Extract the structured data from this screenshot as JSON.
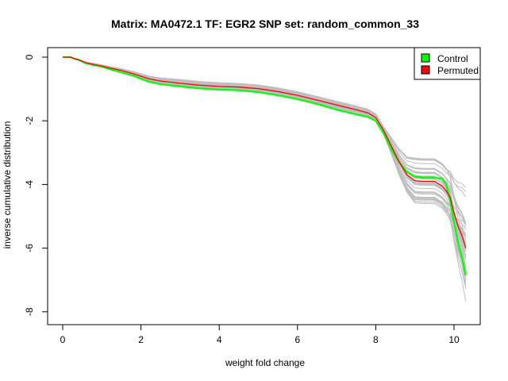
{
  "chart_data": {
    "type": "line",
    "title": "Matrix: MA0472.1 TF: EGR2 SNP set: random_common_33",
    "xlabel": "weight fold change",
    "ylabel": "inverse cumulative distribution",
    "xlim": [
      0,
      10.3
    ],
    "ylim": [
      -8,
      0
    ],
    "x_ticks": [
      0,
      2,
      4,
      6,
      8,
      10
    ],
    "y_ticks": [
      0,
      -2,
      -4,
      -6,
      -8
    ],
    "grid": false,
    "legend_position": "top-right",
    "colors": {
      "control": "#00ff00",
      "permuted": "#ff0000",
      "background": "#bebebe"
    },
    "background_series_count": 40,
    "series": [
      {
        "name": "Control",
        "color": "#00ff00",
        "x": [
          0,
          0.2,
          0.3,
          0.4,
          0.5,
          0.6,
          0.8,
          1.0,
          1.2,
          1.5,
          1.8,
          2.0,
          2.2,
          2.5,
          3.0,
          3.5,
          4.0,
          4.5,
          5.0,
          5.5,
          6.0,
          6.5,
          7.0,
          7.5,
          7.8,
          8.0,
          8.2,
          8.4,
          8.6,
          8.8,
          9.0,
          9.2,
          9.5,
          9.7,
          9.8,
          9.9,
          10.0,
          10.1,
          10.2,
          10.3
        ],
        "values": [
          0,
          0,
          -0.05,
          -0.08,
          -0.14,
          -0.2,
          -0.25,
          -0.3,
          -0.38,
          -0.48,
          -0.58,
          -0.68,
          -0.77,
          -0.85,
          -0.92,
          -0.98,
          -1.02,
          -1.04,
          -1.1,
          -1.2,
          -1.32,
          -1.47,
          -1.65,
          -1.8,
          -1.88,
          -2.0,
          -2.4,
          -2.9,
          -3.3,
          -3.6,
          -3.75,
          -3.78,
          -3.78,
          -3.82,
          -4.0,
          -4.5,
          -5.2,
          -5.8,
          -6.3,
          -6.85
        ]
      },
      {
        "name": "Permuted",
        "color": "#ff0000",
        "x": [
          0,
          0.2,
          0.3,
          0.4,
          0.5,
          0.6,
          0.8,
          1.0,
          1.2,
          1.5,
          1.8,
          2.0,
          2.2,
          2.5,
          3.0,
          3.5,
          4.0,
          4.5,
          5.0,
          5.5,
          6.0,
          6.5,
          7.0,
          7.5,
          7.8,
          8.0,
          8.2,
          8.4,
          8.6,
          8.8,
          9.0,
          9.2,
          9.5,
          9.7,
          9.8,
          9.9,
          10.0,
          10.1,
          10.2,
          10.3
        ],
        "values": [
          0,
          0,
          -0.05,
          -0.08,
          -0.13,
          -0.18,
          -0.23,
          -0.28,
          -0.34,
          -0.42,
          -0.52,
          -0.6,
          -0.68,
          -0.75,
          -0.82,
          -0.88,
          -0.92,
          -0.94,
          -0.99,
          -1.08,
          -1.2,
          -1.35,
          -1.5,
          -1.65,
          -1.75,
          -1.9,
          -2.3,
          -2.8,
          -3.3,
          -3.7,
          -3.88,
          -3.9,
          -3.9,
          -4.05,
          -4.2,
          -4.4,
          -4.9,
          -5.3,
          -5.6,
          -6.0
        ]
      }
    ]
  }
}
